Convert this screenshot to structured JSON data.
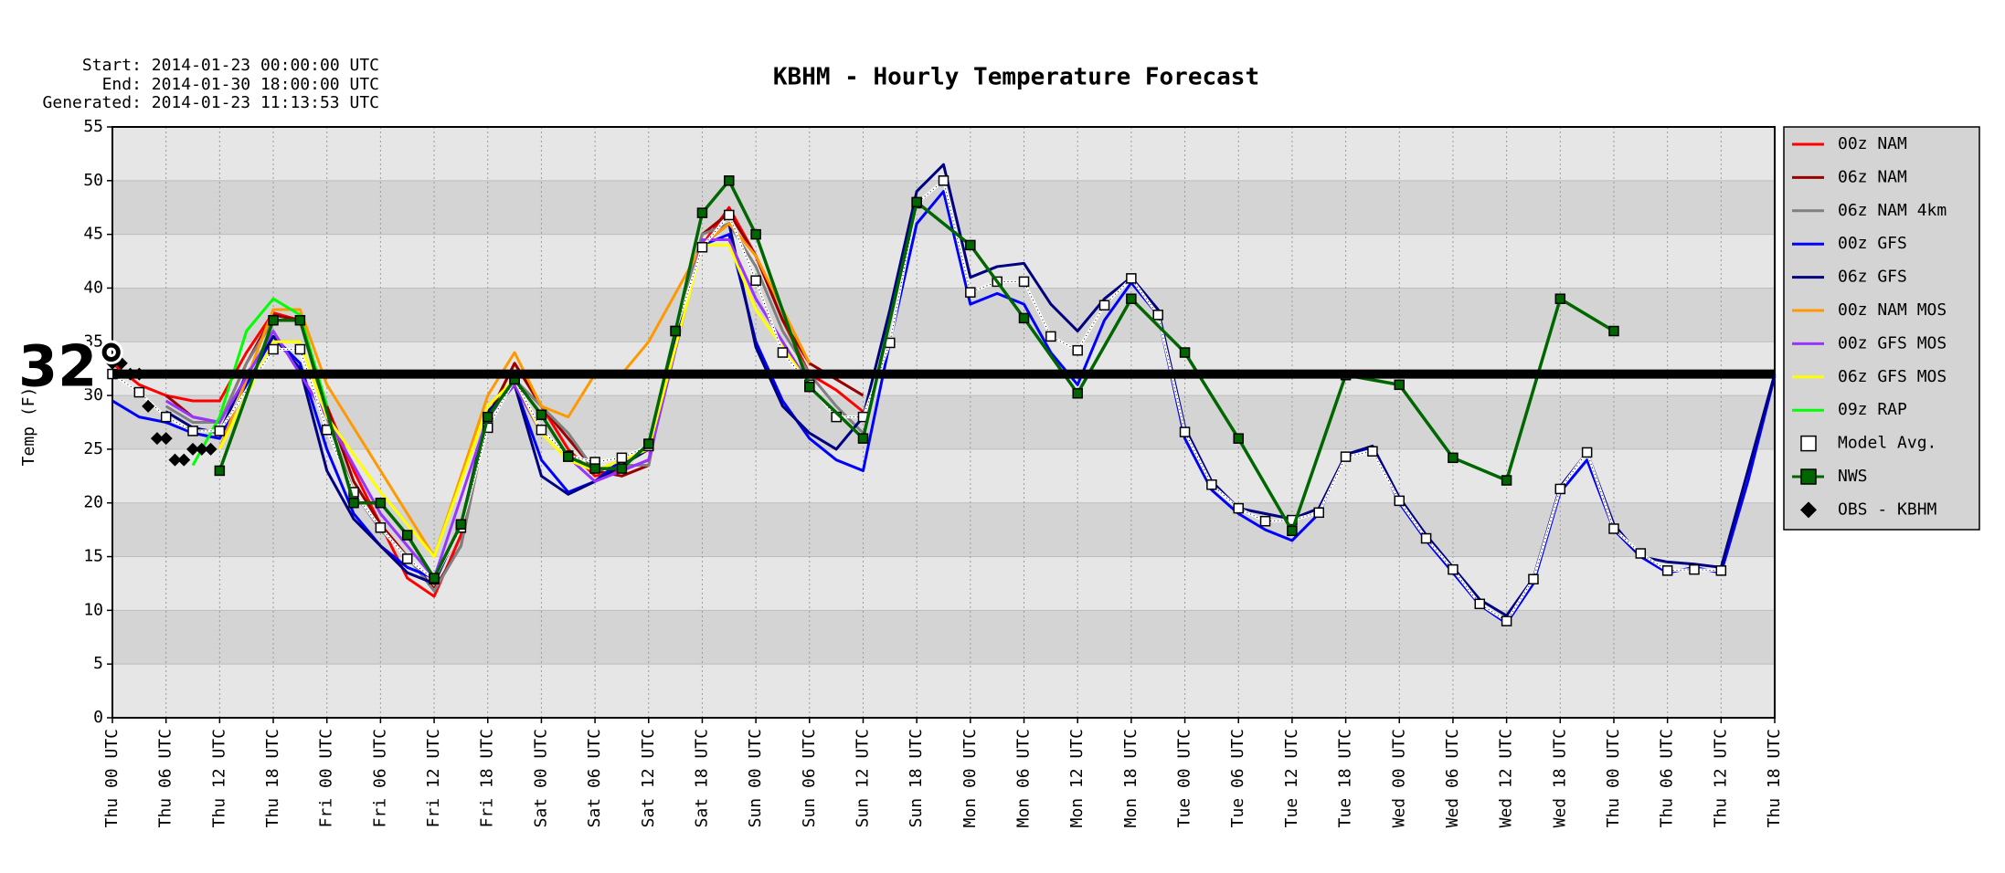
{
  "chart_data": {
    "type": "line",
    "title": "KBHM - Hourly Temperature Forecast",
    "info": [
      "Start: 2014-01-23 00:00:00 UTC",
      "End: 2014-01-30 18:00:00 UTC",
      "Generated: 2014-01-23 11:13:53 UTC"
    ],
    "y_label": "Temp (F)",
    "annotation": {
      "label": "32°",
      "value": 32
    },
    "xlim": [
      0,
      186
    ],
    "xticks": [
      {
        "value": 0,
        "label": "Thu 00 UTC"
      },
      {
        "value": 6,
        "label": "Thu 06 UTC"
      },
      {
        "value": 12,
        "label": "Thu 12 UTC"
      },
      {
        "value": 18,
        "label": "Thu 18 UTC"
      },
      {
        "value": 24,
        "label": "Fri 00 UTC"
      },
      {
        "value": 30,
        "label": "Fri 06 UTC"
      },
      {
        "value": 36,
        "label": "Fri 12 UTC"
      },
      {
        "value": 42,
        "label": "Fri 18 UTC"
      },
      {
        "value": 48,
        "label": "Sat 00 UTC"
      },
      {
        "value": 54,
        "label": "Sat 06 UTC"
      },
      {
        "value": 60,
        "label": "Sat 12 UTC"
      },
      {
        "value": 66,
        "label": "Sat 18 UTC"
      },
      {
        "value": 72,
        "label": "Sun 00 UTC"
      },
      {
        "value": 78,
        "label": "Sun 06 UTC"
      },
      {
        "value": 84,
        "label": "Sun 12 UTC"
      },
      {
        "value": 90,
        "label": "Sun 18 UTC"
      },
      {
        "value": 96,
        "label": "Mon 00 UTC"
      },
      {
        "value": 102,
        "label": "Mon 06 UTC"
      },
      {
        "value": 108,
        "label": "Mon 12 UTC"
      },
      {
        "value": 114,
        "label": "Mon 18 UTC"
      },
      {
        "value": 120,
        "label": "Tue 00 UTC"
      },
      {
        "value": 126,
        "label": "Tue 06 UTC"
      },
      {
        "value": 132,
        "label": "Tue 12 UTC"
      },
      {
        "value": 138,
        "label": "Tue 18 UTC"
      },
      {
        "value": 144,
        "label": "Wed 00 UTC"
      },
      {
        "value": 150,
        "label": "Wed 06 UTC"
      },
      {
        "value": 156,
        "label": "Wed 12 UTC"
      },
      {
        "value": 162,
        "label": "Wed 18 UTC"
      },
      {
        "value": 168,
        "label": "Thu 00 UTC"
      },
      {
        "value": 174,
        "label": "Thu 06 UTC"
      },
      {
        "value": 180,
        "label": "Thu 12 UTC"
      },
      {
        "value": 186,
        "label": "Thu 18 UTC"
      }
    ],
    "ylim": [
      0,
      55
    ],
    "yticks": [
      0,
      5,
      10,
      15,
      20,
      25,
      30,
      35,
      40,
      45,
      50,
      55
    ],
    "grid": true,
    "legend": "right",
    "series": [
      {
        "name": "00z NAM",
        "color": "#ff0000",
        "x": [
          0,
          3,
          6,
          9,
          12,
          15,
          18,
          21,
          24,
          27,
          30,
          33,
          36,
          39,
          42,
          45,
          48,
          51,
          54,
          57,
          60,
          63,
          66,
          69,
          72,
          75,
          78,
          81,
          84
        ],
        "values": [
          33,
          31,
          30,
          29.5,
          29.5,
          34,
          37.7,
          37,
          29,
          23,
          18,
          13,
          11.3,
          17,
          28,
          33,
          29,
          25,
          22.5,
          23,
          24,
          35,
          44,
          47.5,
          43,
          37,
          32,
          30.5,
          28.5
        ]
      },
      {
        "name": "06z NAM",
        "color": "#990000",
        "x": [
          6,
          9,
          12,
          15,
          18,
          21,
          24,
          27,
          30,
          33,
          36,
          39,
          42,
          45,
          48,
          51,
          54,
          57,
          60,
          63,
          66,
          69,
          72,
          75,
          78,
          81,
          84
        ],
        "values": [
          30,
          28,
          27.5,
          33,
          37.5,
          37,
          29,
          22,
          18,
          15,
          12,
          16,
          28,
          33,
          29,
          26,
          23,
          22.5,
          23.5,
          36,
          45,
          47,
          43,
          37,
          33,
          31.5,
          30
        ]
      },
      {
        "name": "06z NAM 4km",
        "color": "#808080",
        "x": [
          6,
          9,
          12,
          15,
          18,
          21,
          24,
          27,
          30,
          33,
          36,
          39,
          42,
          45,
          48,
          51,
          54,
          57,
          60,
          63,
          66,
          69,
          72,
          75,
          78,
          81,
          84
        ],
        "values": [
          29,
          27.5,
          27.5,
          33,
          37,
          37,
          28,
          21,
          17.5,
          15,
          11.8,
          16,
          28,
          31.5,
          29,
          26.5,
          23,
          23.5,
          23.5,
          36,
          45,
          46,
          42,
          36,
          32,
          29,
          26.5
        ]
      },
      {
        "name": "00z GFS",
        "color": "#0000ff",
        "x": [
          0,
          3,
          6,
          9,
          12,
          15,
          18,
          21,
          24,
          27,
          30,
          33,
          36,
          39,
          42,
          45,
          48,
          51,
          54,
          57,
          60,
          63,
          66,
          69,
          72,
          75,
          78,
          81,
          84,
          87,
          90,
          93,
          96,
          99,
          102,
          105,
          108,
          111,
          114,
          117,
          120,
          123,
          126,
          129,
          132,
          135,
          138,
          141,
          144,
          147,
          150,
          153,
          156,
          159,
          162,
          165,
          168,
          171,
          174,
          177,
          180,
          183,
          186
        ],
        "values": [
          29.5,
          28,
          27.5,
          26.5,
          26,
          31,
          35.5,
          33,
          25,
          19,
          16,
          14,
          13,
          18,
          28,
          31,
          24,
          21,
          22,
          24,
          25,
          35,
          44,
          45,
          35,
          29.5,
          26,
          24,
          23,
          35,
          46,
          49,
          38.5,
          39.5,
          38.5,
          34,
          31,
          37,
          40.5,
          37.5,
          26,
          21.2,
          19,
          17.5,
          16.5,
          19,
          24.5,
          25.2,
          20,
          16.5,
          13.5,
          10.5,
          8.8,
          12.5,
          21,
          24,
          17.5,
          15,
          13.5,
          14,
          13.5,
          22,
          31.8
        ]
      },
      {
        "name": "06z GFS",
        "color": "#000080",
        "x": [
          6,
          9,
          12,
          15,
          18,
          21,
          24,
          27,
          30,
          33,
          36,
          39,
          42,
          45,
          48,
          51,
          54,
          57,
          60,
          63,
          66,
          69,
          72,
          75,
          78,
          81,
          84,
          87,
          90,
          93,
          96,
          99,
          102,
          105,
          108,
          111,
          114,
          117,
          120,
          123,
          126,
          129,
          132,
          135,
          138,
          141,
          144,
          147,
          150,
          153,
          156,
          159,
          162,
          165,
          168,
          171,
          174,
          177,
          180,
          183,
          186
        ],
        "values": [
          28.5,
          27,
          26.5,
          32,
          35.5,
          32.5,
          23,
          18.5,
          16,
          13.5,
          12.5,
          18,
          28.5,
          31,
          22.5,
          20.8,
          22,
          23.5,
          25,
          35.5,
          44,
          46,
          34.5,
          29,
          26.5,
          25,
          28,
          38,
          49,
          51.5,
          41,
          42,
          42.3,
          38.5,
          36,
          39,
          41,
          38,
          27,
          22,
          19.5,
          19,
          18.5,
          19.5,
          24.5,
          25.3,
          20.5,
          17,
          14,
          11,
          9.5,
          13,
          21.5,
          24.7,
          18,
          15,
          14.5,
          14.3,
          14,
          23,
          32
        ]
      },
      {
        "name": "00z NAM MOS",
        "color": "#ff9900",
        "x": [
          12,
          18,
          21,
          24,
          30,
          36,
          42,
          45,
          48,
          51,
          54,
          57,
          60,
          66,
          69,
          72,
          78
        ],
        "values": [
          25,
          38,
          38,
          31,
          23,
          15,
          30,
          34,
          29,
          28,
          32,
          32,
          35,
          44,
          46,
          43,
          33
        ]
      },
      {
        "name": "00z GFS MOS",
        "color": "#9933ff",
        "x": [
          6,
          9,
          12,
          18,
          24,
          30,
          36,
          42,
          45,
          48,
          54,
          60,
          66,
          69,
          72,
          78
        ],
        "values": [
          29.5,
          28,
          27.5,
          36,
          28,
          19,
          13,
          28,
          31,
          26.5,
          22,
          24,
          44.5,
          44.5,
          39,
          31
        ]
      },
      {
        "name": "06z GFS MOS",
        "color": "#ffff00",
        "x": [
          12,
          18,
          21,
          24,
          30,
          36,
          42,
          45,
          48,
          51,
          54,
          60,
          66,
          69,
          72,
          78
        ],
        "values": [
          25,
          35,
          35,
          28,
          21,
          15,
          29,
          31.5,
          26.5,
          24,
          23,
          25,
          44,
          44,
          38,
          31
        ]
      },
      {
        "name": "09z RAP",
        "color": "#00ff00",
        "x": [
          9,
          12,
          15,
          18,
          21,
          24
        ],
        "values": [
          23.5,
          28,
          36,
          39,
          37.5,
          29
        ]
      },
      {
        "name": "Model Avg.",
        "color": "#ffffff",
        "marker": "square",
        "x": [
          0,
          3,
          6,
          9,
          12,
          18,
          21,
          24,
          27,
          30,
          33,
          36,
          39,
          42,
          45,
          48,
          51,
          54,
          57,
          60,
          63,
          66,
          69,
          72,
          75,
          78,
          81,
          84,
          87,
          90,
          93,
          96,
          99,
          102,
          105,
          108,
          111,
          114,
          117,
          120,
          123,
          126,
          129,
          132,
          135,
          138,
          141,
          144,
          147,
          150,
          153,
          156,
          159,
          162,
          165,
          168,
          171,
          174,
          177,
          180
        ],
        "values": [
          32,
          30.3,
          28,
          26.7,
          26.7,
          34.3,
          34.3,
          26.8,
          21,
          17.7,
          14.8,
          12.9,
          17.7,
          27,
          31.5,
          26.8,
          24.4,
          23.8,
          24.2,
          25.3,
          36,
          43.8,
          46.8,
          40.7,
          34,
          31,
          28,
          28,
          34.9,
          47.9,
          50,
          39.6,
          40.6,
          40.6,
          35.5,
          34.2,
          38.4,
          40.9,
          37.5,
          26.6,
          21.7,
          19.5,
          18.3,
          18.4,
          19.1,
          24.3,
          24.8,
          20.2,
          16.7,
          13.8,
          10.6,
          9,
          12.9,
          21.3,
          24.7,
          17.6,
          15.3,
          13.7,
          13.8,
          13.7
        ]
      },
      {
        "name": "NWS",
        "color": "#006600",
        "marker": "square",
        "x": [
          12,
          18,
          21,
          27,
          30,
          33,
          36,
          39,
          42,
          45,
          48,
          51,
          54,
          57,
          60,
          63,
          66,
          69,
          72,
          78,
          84,
          90,
          96,
          102,
          108,
          114,
          120,
          126,
          132,
          138,
          144,
          150,
          156,
          162,
          168
        ],
        "values": [
          23,
          37,
          37,
          20,
          20,
          17,
          13,
          18,
          28,
          31.5,
          28.2,
          24.3,
          23.2,
          23.2,
          25.5,
          36,
          47,
          50,
          45,
          30.8,
          26,
          48,
          44,
          37.2,
          30.2,
          39,
          34,
          26,
          17.4,
          31.9,
          31,
          24.2,
          22.1,
          39,
          36
        ]
      },
      {
        "name": "OBS - KBHM",
        "color": "#000000",
        "marker": "diamond",
        "line": false,
        "x": [
          0,
          1,
          2,
          3,
          4,
          5,
          6,
          7,
          8,
          9,
          10,
          11
        ],
        "values": [
          33,
          33,
          32,
          32,
          29,
          26,
          26,
          24,
          24,
          25,
          25,
          25
        ]
      }
    ]
  }
}
